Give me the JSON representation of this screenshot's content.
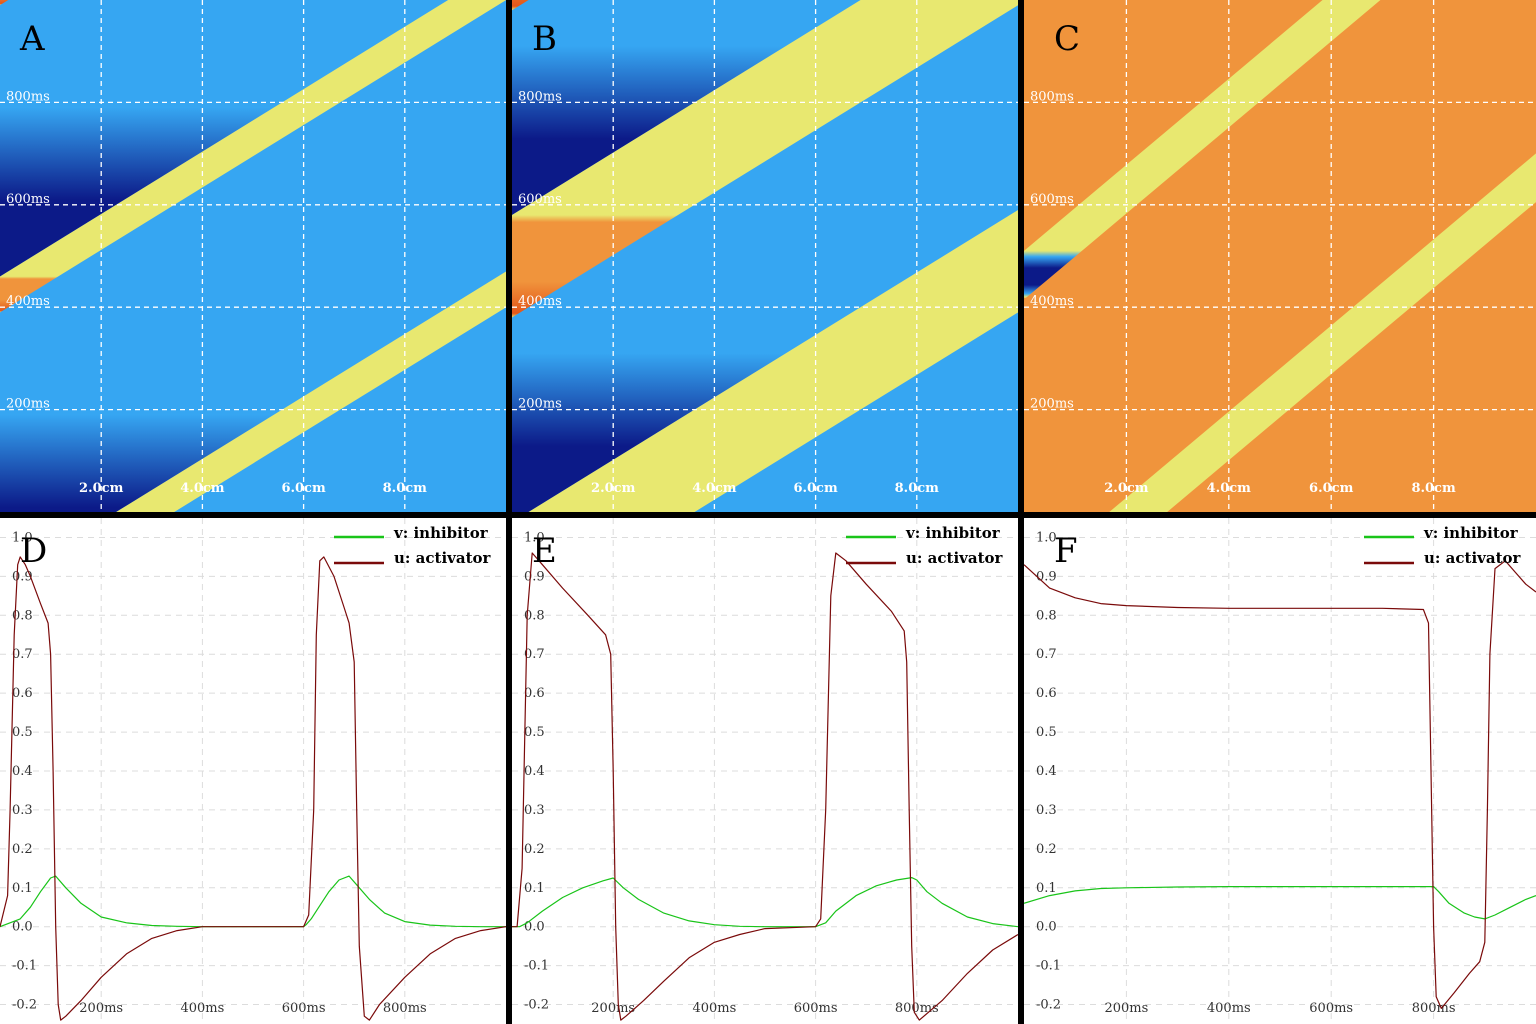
{
  "colors": {
    "rest": "#36a6f2",
    "excited": "#f0943c",
    "excited_dark": "#e3561a",
    "refractory": "#0c1a88",
    "edge_yellow": "#e8e870",
    "grid": "#ffffff",
    "inhibitor": "#19c419",
    "activator": "#7a0a0a",
    "divider": "#000000"
  },
  "legend": {
    "inhibitor_label": "v: inhibitor",
    "activator_label": "u: activator"
  },
  "heatmap_axes": {
    "x_ticks": [
      "2.0cm",
      "4.0cm",
      "6.0cm",
      "8.0cm"
    ],
    "y_ticks": [
      "200ms",
      "400ms",
      "600ms",
      "800ms"
    ]
  },
  "line_axes": {
    "x_ticks": [
      "200ms",
      "400ms",
      "600ms",
      "800ms"
    ],
    "y_ticks": [
      "-0.2",
      "-0.1",
      "0.0",
      "0.1",
      "0.2",
      "0.3",
      "0.4",
      "0.5",
      "0.6",
      "0.7",
      "0.8",
      "0.9",
      "1.0"
    ]
  },
  "chart_data": [
    {
      "panel": "A",
      "type": "heatmap",
      "xlim": [
        0,
        10
      ],
      "ylim": [
        0,
        1000
      ],
      "grid": true,
      "x_unit": "cm",
      "y_unit": "ms",
      "xticks": [
        2,
        4,
        6,
        8
      ],
      "yticks": [
        200,
        400,
        600,
        800
      ],
      "xtick_labels": [
        "2.0cm",
        "4.0cm",
        "6.0cm",
        "8.0cm"
      ],
      "ytick_labels": [
        "200ms",
        "400ms",
        "600ms",
        "800ms"
      ],
      "background": "rest",
      "wave_speed_cm_per_ms": 0.0164,
      "front_offsets_ms": [
        -210,
        390,
        990
      ],
      "excited_duration_ms": 70,
      "refractory_duration_ms": 330
    },
    {
      "panel": "B",
      "type": "heatmap",
      "xlim": [
        0,
        10
      ],
      "ylim": [
        0,
        1000
      ],
      "grid": true,
      "x_unit": "cm",
      "y_unit": "ms",
      "xticks": [
        2,
        4,
        6,
        8
      ],
      "yticks": [
        200,
        400,
        600,
        800
      ],
      "xtick_labels": [
        "2.0cm",
        "4.0cm",
        "6.0cm",
        "8.0cm"
      ],
      "ytick_labels": [
        "200ms",
        "400ms",
        "600ms",
        "800ms"
      ],
      "background": "rest",
      "wave_speed_cm_per_ms": 0.0164,
      "front_offsets_ms": [
        -220,
        380,
        980
      ],
      "excited_duration_ms": 200,
      "refractory_duration_ms": 330
    },
    {
      "panel": "C",
      "type": "heatmap",
      "xlim": [
        0,
        10
      ],
      "ylim": [
        0,
        1000
      ],
      "grid": true,
      "x_unit": "cm",
      "y_unit": "ms",
      "xticks": [
        2,
        4,
        6,
        8
      ],
      "yticks": [
        200,
        400,
        600,
        800
      ],
      "xtick_labels": [
        "2.0cm",
        "4.0cm",
        "6.0cm",
        "8.0cm"
      ],
      "ytick_labels": [
        "200ms",
        "400ms",
        "600ms",
        "800ms"
      ],
      "background": "excited",
      "wave_speed_cm_per_ms": 0.0119,
      "front_offsets_ms": [
        -235,
        415,
        1065
      ],
      "refractory_duration_ms": 95
    },
    {
      "panel": "D",
      "type": "line",
      "xlim": [
        0,
        1000
      ],
      "ylim": [
        -0.25,
        1.05
      ],
      "grid": true,
      "xticks": [
        200,
        400,
        600,
        800
      ],
      "yticks": [
        -0.2,
        -0.1,
        0.0,
        0.1,
        0.2,
        0.3,
        0.4,
        0.5,
        0.6,
        0.7,
        0.8,
        0.9,
        1.0
      ],
      "xtick_labels": [
        "200ms",
        "400ms",
        "600ms",
        "800ms"
      ],
      "series": [
        {
          "name": "v: inhibitor",
          "color": "inhibitor",
          "x": [
            0,
            20,
            40,
            60,
            80,
            100,
            110,
            130,
            160,
            200,
            250,
            300,
            350,
            400,
            600,
            605,
            615,
            630,
            650,
            670,
            690,
            710,
            730,
            760,
            800,
            850,
            900,
            950,
            1000
          ],
          "y": [
            0.0,
            0.01,
            0.02,
            0.05,
            0.09,
            0.125,
            0.13,
            0.1,
            0.06,
            0.025,
            0.01,
            0.003,
            0.001,
            0.0,
            0.0,
            0.005,
            0.02,
            0.05,
            0.09,
            0.12,
            0.13,
            0.1,
            0.07,
            0.035,
            0.013,
            0.004,
            0.001,
            0.0,
            0.0
          ]
        },
        {
          "name": "u: activator",
          "color": "activator",
          "x": [
            0,
            15,
            20,
            28,
            35,
            40,
            50,
            60,
            80,
            95,
            100,
            105,
            110,
            115,
            120,
            130,
            160,
            200,
            250,
            300,
            350,
            400,
            450,
            500,
            600,
            610,
            620,
            625,
            632,
            640,
            660,
            680,
            690,
            700,
            705,
            710,
            720,
            730,
            750,
            800,
            850,
            900,
            950,
            1000
          ],
          "y": [
            0.0,
            0.08,
            0.3,
            0.75,
            0.93,
            0.95,
            0.93,
            0.9,
            0.83,
            0.78,
            0.7,
            0.4,
            0.0,
            -0.2,
            -0.24,
            -0.23,
            -0.19,
            -0.13,
            -0.07,
            -0.03,
            -0.01,
            0.0,
            0.0,
            0.0,
            0.0,
            0.03,
            0.3,
            0.75,
            0.94,
            0.95,
            0.9,
            0.82,
            0.78,
            0.68,
            0.3,
            -0.05,
            -0.23,
            -0.24,
            -0.2,
            -0.13,
            -0.07,
            -0.03,
            -0.01,
            0.0
          ]
        }
      ]
    },
    {
      "panel": "E",
      "type": "line",
      "xlim": [
        0,
        1000
      ],
      "ylim": [
        -0.25,
        1.05
      ],
      "grid": true,
      "xticks": [
        200,
        400,
        600,
        800
      ],
      "yticks": [
        -0.2,
        -0.1,
        0.0,
        0.1,
        0.2,
        0.3,
        0.4,
        0.5,
        0.6,
        0.7,
        0.8,
        0.9,
        1.0
      ],
      "xtick_labels": [
        "200ms",
        "400ms",
        "600ms",
        "800ms"
      ],
      "series": [
        {
          "name": "v: inhibitor",
          "color": "inhibitor",
          "x": [
            0,
            15,
            30,
            60,
            100,
            140,
            180,
            200,
            220,
            250,
            300,
            350,
            400,
            450,
            500,
            600,
            620,
            640,
            680,
            720,
            760,
            790,
            800,
            820,
            850,
            900,
            950,
            1000
          ],
          "y": [
            0.0,
            0.0,
            0.01,
            0.04,
            0.075,
            0.1,
            0.118,
            0.125,
            0.1,
            0.07,
            0.035,
            0.015,
            0.005,
            0.001,
            0.0,
            0.0,
            0.01,
            0.04,
            0.08,
            0.105,
            0.12,
            0.126,
            0.12,
            0.09,
            0.06,
            0.025,
            0.008,
            0.0
          ]
        },
        {
          "name": "u: activator",
          "color": "activator",
          "x": [
            0,
            10,
            20,
            30,
            40,
            60,
            100,
            150,
            185,
            195,
            200,
            205,
            210,
            215,
            225,
            260,
            300,
            350,
            400,
            450,
            500,
            600,
            610,
            620,
            630,
            640,
            660,
            700,
            750,
            775,
            780,
            785,
            790,
            795,
            805,
            850,
            900,
            950,
            1000
          ],
          "y": [
            0.0,
            0.0,
            0.15,
            0.8,
            0.96,
            0.93,
            0.87,
            0.8,
            0.75,
            0.7,
            0.4,
            0.0,
            -0.2,
            -0.24,
            -0.23,
            -0.19,
            -0.14,
            -0.08,
            -0.04,
            -0.02,
            -0.005,
            0.0,
            0.02,
            0.3,
            0.85,
            0.96,
            0.94,
            0.88,
            0.81,
            0.76,
            0.68,
            0.3,
            -0.05,
            -0.22,
            -0.24,
            -0.19,
            -0.12,
            -0.06,
            -0.02
          ]
        }
      ]
    },
    {
      "panel": "F",
      "type": "line",
      "xlim": [
        0,
        1000
      ],
      "ylim": [
        -0.25,
        1.05
      ],
      "grid": true,
      "xticks": [
        200,
        400,
        600,
        800
      ],
      "yticks": [
        -0.2,
        -0.1,
        0.0,
        0.1,
        0.2,
        0.3,
        0.4,
        0.5,
        0.6,
        0.7,
        0.8,
        0.9,
        1.0
      ],
      "xtick_labels": [
        "200ms",
        "400ms",
        "600ms",
        "800ms"
      ],
      "series": [
        {
          "name": "v: inhibitor",
          "color": "inhibitor",
          "x": [
            0,
            50,
            100,
            150,
            200,
            300,
            400,
            500,
            600,
            700,
            800,
            810,
            830,
            860,
            880,
            900,
            920,
            950,
            980,
            1000
          ],
          "y": [
            0.06,
            0.08,
            0.092,
            0.098,
            0.1,
            0.102,
            0.103,
            0.103,
            0.103,
            0.103,
            0.103,
            0.09,
            0.06,
            0.035,
            0.025,
            0.02,
            0.03,
            0.05,
            0.07,
            0.08
          ]
        },
        {
          "name": "u: activator",
          "color": "activator",
          "x": [
            0,
            50,
            100,
            150,
            200,
            300,
            400,
            500,
            600,
            700,
            780,
            790,
            795,
            800,
            805,
            815,
            840,
            870,
            890,
            900,
            905,
            910,
            920,
            940,
            960,
            980,
            1000
          ],
          "y": [
            0.93,
            0.87,
            0.845,
            0.83,
            0.825,
            0.82,
            0.818,
            0.818,
            0.818,
            0.818,
            0.815,
            0.78,
            0.4,
            0.0,
            -0.18,
            -0.21,
            -0.17,
            -0.12,
            -0.09,
            -0.04,
            0.3,
            0.7,
            0.92,
            0.94,
            0.91,
            0.88,
            0.86
          ]
        }
      ]
    }
  ],
  "panels": {
    "A": {
      "letter": "A"
    },
    "B": {
      "letter": "B"
    },
    "C": {
      "letter": "C"
    },
    "D": {
      "letter": "D"
    },
    "E": {
      "letter": "E"
    },
    "F": {
      "letter": "F"
    }
  }
}
